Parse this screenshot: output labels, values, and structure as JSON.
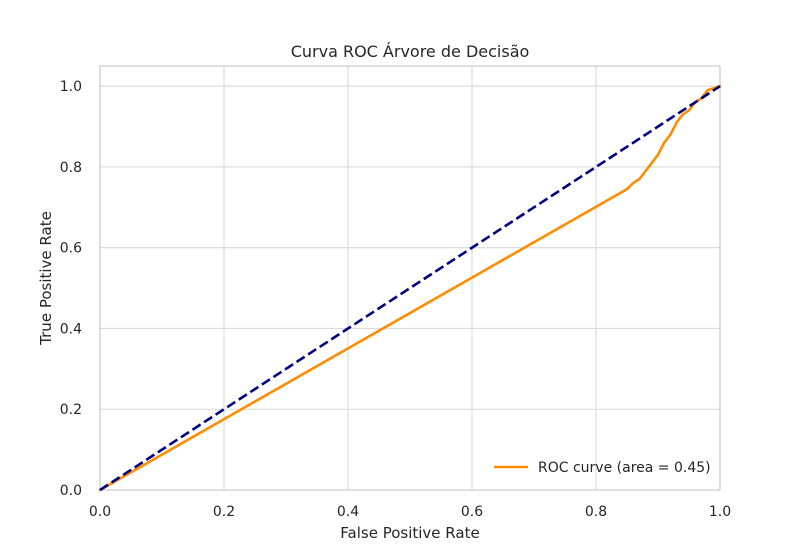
{
  "chart_data": {
    "type": "line",
    "title": "Curva ROC Árvore de Decisão",
    "xlabel": "False Positive Rate",
    "ylabel": "True Positive Rate",
    "xlim": [
      0.0,
      1.0
    ],
    "ylim": [
      0.0,
      1.05
    ],
    "grid": true,
    "legend_placement": "lower-right",
    "xticks": [
      0.0,
      0.2,
      0.4,
      0.6,
      0.8,
      1.0
    ],
    "xtick_labels": [
      "0.0",
      "0.2",
      "0.4",
      "0.6",
      "0.8",
      "1.0"
    ],
    "yticks": [
      0.0,
      0.2,
      0.4,
      0.6,
      0.8,
      1.0
    ],
    "ytick_labels": [
      "0.0",
      "0.2",
      "0.4",
      "0.6",
      "0.8",
      "1.0"
    ],
    "series": [
      {
        "name": "ROC curve (area = 0.45)",
        "color": "#ff8c00",
        "style": "solid",
        "x": [
          0.0,
          0.85,
          0.86,
          0.87,
          0.88,
          0.89,
          0.9,
          0.91,
          0.92,
          0.93,
          0.94,
          0.95,
          0.96,
          0.97,
          0.98,
          1.0
        ],
        "y": [
          0.0,
          0.745,
          0.76,
          0.77,
          0.79,
          0.81,
          0.83,
          0.86,
          0.88,
          0.91,
          0.93,
          0.94,
          0.96,
          0.97,
          0.99,
          1.0
        ]
      },
      {
        "color": "#000080",
        "style": "dashed",
        "x": [
          0.0,
          1.0
        ],
        "y": [
          0.0,
          1.0
        ]
      }
    ]
  }
}
